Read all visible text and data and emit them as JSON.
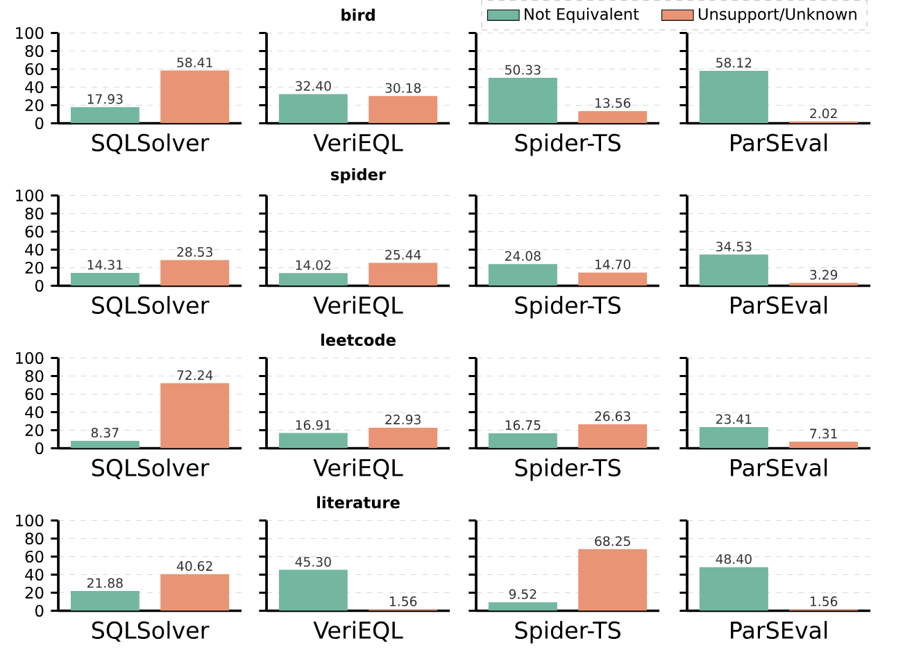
{
  "chart_data": [
    {
      "type": "bar",
      "categories": [
        "SQLSolver"
      ],
      "series": [
        {
          "color": "#73b7a0",
          "values": [
            17.93
          ],
          "value_labels": [
            "17.93"
          ]
        },
        {
          "color": "#e99475",
          "values": [
            58.41
          ],
          "value_labels": [
            "58.41"
          ]
        }
      ],
      "ylim": [
        0,
        100
      ],
      "yticks": [
        0,
        20,
        40,
        60,
        80,
        100
      ],
      "grid": "y"
    },
    {
      "type": "bar",
      "title": "bird",
      "categories": [
        "VeriEQL"
      ],
      "series": [
        {
          "color": "#73b7a0",
          "values": [
            32.4
          ],
          "value_labels": [
            "32.40"
          ]
        },
        {
          "color": "#e99475",
          "values": [
            30.18
          ],
          "value_labels": [
            "30.18"
          ]
        }
      ],
      "ylim": [
        0,
        100
      ],
      "yticks": [
        0,
        20,
        40,
        60,
        80,
        100
      ],
      "grid": "y",
      "tick_labels": "x"
    },
    {
      "type": "bar",
      "categories": [
        "Spider-TS"
      ],
      "series": [
        {
          "color": "#73b7a0",
          "values": [
            50.33
          ],
          "value_labels": [
            "50.33"
          ]
        },
        {
          "color": "#e99475",
          "values": [
            13.56
          ],
          "value_labels": [
            "13.56"
          ]
        }
      ],
      "ylim": [
        0,
        100
      ],
      "yticks": [
        0,
        20,
        40,
        60,
        80,
        100
      ],
      "grid": "y",
      "tick_labels": "x"
    },
    {
      "type": "bar",
      "categories": [
        "ParSEval"
      ],
      "series": [
        {
          "name": "Not Equivalent",
          "color": "#73b7a0",
          "values": [
            58.12
          ],
          "value_labels": [
            "58.12"
          ]
        },
        {
          "name": "Unsupport/Unknown",
          "color": "#e99475",
          "values": [
            2.02
          ],
          "value_labels": [
            "2.02"
          ]
        }
      ],
      "ylim": [
        0,
        100
      ],
      "yticks": [
        0,
        20,
        40,
        60,
        80,
        100
      ],
      "grid": "y",
      "tick_labels": "x",
      "legend": "top"
    },
    {
      "type": "bar",
      "categories": [
        "SQLSolver"
      ],
      "series": [
        {
          "color": "#73b7a0",
          "values": [
            14.31
          ],
          "value_labels": [
            "14.31"
          ]
        },
        {
          "color": "#e99475",
          "values": [
            28.53
          ],
          "value_labels": [
            "28.53"
          ]
        }
      ],
      "ylim": [
        0,
        100
      ],
      "yticks": [
        0,
        20,
        40,
        60,
        80,
        100
      ],
      "grid": "y"
    },
    {
      "type": "bar",
      "title": "spider",
      "categories": [
        "VeriEQL"
      ],
      "series": [
        {
          "color": "#73b7a0",
          "values": [
            14.02
          ],
          "value_labels": [
            "14.02"
          ]
        },
        {
          "color": "#e99475",
          "values": [
            25.44
          ],
          "value_labels": [
            "25.44"
          ]
        }
      ],
      "ylim": [
        0,
        100
      ],
      "yticks": [
        0,
        20,
        40,
        60,
        80,
        100
      ],
      "grid": "y",
      "tick_labels": "x"
    },
    {
      "type": "bar",
      "categories": [
        "Spider-TS"
      ],
      "series": [
        {
          "color": "#73b7a0",
          "values": [
            24.08
          ],
          "value_labels": [
            "24.08"
          ]
        },
        {
          "color": "#e99475",
          "values": [
            14.7
          ],
          "value_labels": [
            "14.70"
          ]
        }
      ],
      "ylim": [
        0,
        100
      ],
      "yticks": [
        0,
        20,
        40,
        60,
        80,
        100
      ],
      "grid": "y",
      "tick_labels": "x"
    },
    {
      "type": "bar",
      "categories": [
        "ParSEval"
      ],
      "series": [
        {
          "color": "#73b7a0",
          "values": [
            34.53
          ],
          "value_labels": [
            "34.53"
          ]
        },
        {
          "color": "#e99475",
          "values": [
            3.29
          ],
          "value_labels": [
            "3.29"
          ]
        }
      ],
      "ylim": [
        0,
        100
      ],
      "yticks": [
        0,
        20,
        40,
        60,
        80,
        100
      ],
      "grid": "y",
      "tick_labels": "x"
    },
    {
      "type": "bar",
      "categories": [
        "SQLSolver"
      ],
      "series": [
        {
          "color": "#73b7a0",
          "values": [
            8.37
          ],
          "value_labels": [
            "8.37"
          ]
        },
        {
          "color": "#e99475",
          "values": [
            72.24
          ],
          "value_labels": [
            "72.24"
          ]
        }
      ],
      "ylim": [
        0,
        100
      ],
      "yticks": [
        0,
        20,
        40,
        60,
        80,
        100
      ],
      "grid": "y"
    },
    {
      "type": "bar",
      "title": "leetcode",
      "categories": [
        "VeriEQL"
      ],
      "series": [
        {
          "color": "#73b7a0",
          "values": [
            16.91
          ],
          "value_labels": [
            "16.91"
          ]
        },
        {
          "color": "#e99475",
          "values": [
            22.93
          ],
          "value_labels": [
            "22.93"
          ]
        }
      ],
      "ylim": [
        0,
        100
      ],
      "yticks": [
        0,
        20,
        40,
        60,
        80,
        100
      ],
      "grid": "y",
      "tick_labels": "x"
    },
    {
      "type": "bar",
      "categories": [
        "Spider-TS"
      ],
      "series": [
        {
          "color": "#73b7a0",
          "values": [
            16.75
          ],
          "value_labels": [
            "16.75"
          ]
        },
        {
          "color": "#e99475",
          "values": [
            26.63
          ],
          "value_labels": [
            "26.63"
          ]
        }
      ],
      "ylim": [
        0,
        100
      ],
      "yticks": [
        0,
        20,
        40,
        60,
        80,
        100
      ],
      "grid": "y",
      "tick_labels": "x"
    },
    {
      "type": "bar",
      "categories": [
        "ParSEval"
      ],
      "series": [
        {
          "color": "#73b7a0",
          "values": [
            23.41
          ],
          "value_labels": [
            "23.41"
          ]
        },
        {
          "color": "#e99475",
          "values": [
            7.31
          ],
          "value_labels": [
            "7.31"
          ]
        }
      ],
      "ylim": [
        0,
        100
      ],
      "yticks": [
        0,
        20,
        40,
        60,
        80,
        100
      ],
      "grid": "y",
      "tick_labels": "x"
    },
    {
      "type": "bar",
      "categories": [
        "SQLSolver"
      ],
      "series": [
        {
          "color": "#73b7a0",
          "values": [
            21.88
          ],
          "value_labels": [
            "21.88"
          ]
        },
        {
          "color": "#e99475",
          "values": [
            40.62
          ],
          "value_labels": [
            "40.62"
          ]
        }
      ],
      "ylim": [
        0,
        100
      ],
      "yticks": [
        0,
        20,
        40,
        60,
        80,
        100
      ],
      "grid": "y"
    },
    {
      "type": "bar",
      "title": "literature",
      "categories": [
        "VeriEQL"
      ],
      "series": [
        {
          "color": "#73b7a0",
          "values": [
            45.3
          ],
          "value_labels": [
            "45.30"
          ]
        },
        {
          "color": "#e99475",
          "values": [
            1.56
          ],
          "value_labels": [
            "1.56"
          ]
        }
      ],
      "ylim": [
        0,
        100
      ],
      "yticks": [
        0,
        20,
        40,
        60,
        80,
        100
      ],
      "grid": "y",
      "tick_labels": "x"
    },
    {
      "type": "bar",
      "categories": [
        "Spider-TS"
      ],
      "series": [
        {
          "color": "#73b7a0",
          "values": [
            9.52
          ],
          "value_labels": [
            "9.52"
          ]
        },
        {
          "color": "#e99475",
          "values": [
            68.25
          ],
          "value_labels": [
            "68.25"
          ]
        }
      ],
      "ylim": [
        0,
        100
      ],
      "yticks": [
        0,
        20,
        40,
        60,
        80,
        100
      ],
      "grid": "y",
      "tick_labels": "x"
    },
    {
      "type": "bar",
      "categories": [
        "ParSEval"
      ],
      "series": [
        {
          "color": "#73b7a0",
          "values": [
            48.4
          ],
          "value_labels": [
            "48.40"
          ]
        },
        {
          "color": "#e99475",
          "values": [
            1.56
          ],
          "value_labels": [
            "1.56"
          ]
        }
      ],
      "ylim": [
        0,
        100
      ],
      "yticks": [
        0,
        20,
        40,
        60,
        80,
        100
      ],
      "grid": "y",
      "tick_labels": "x"
    }
  ]
}
